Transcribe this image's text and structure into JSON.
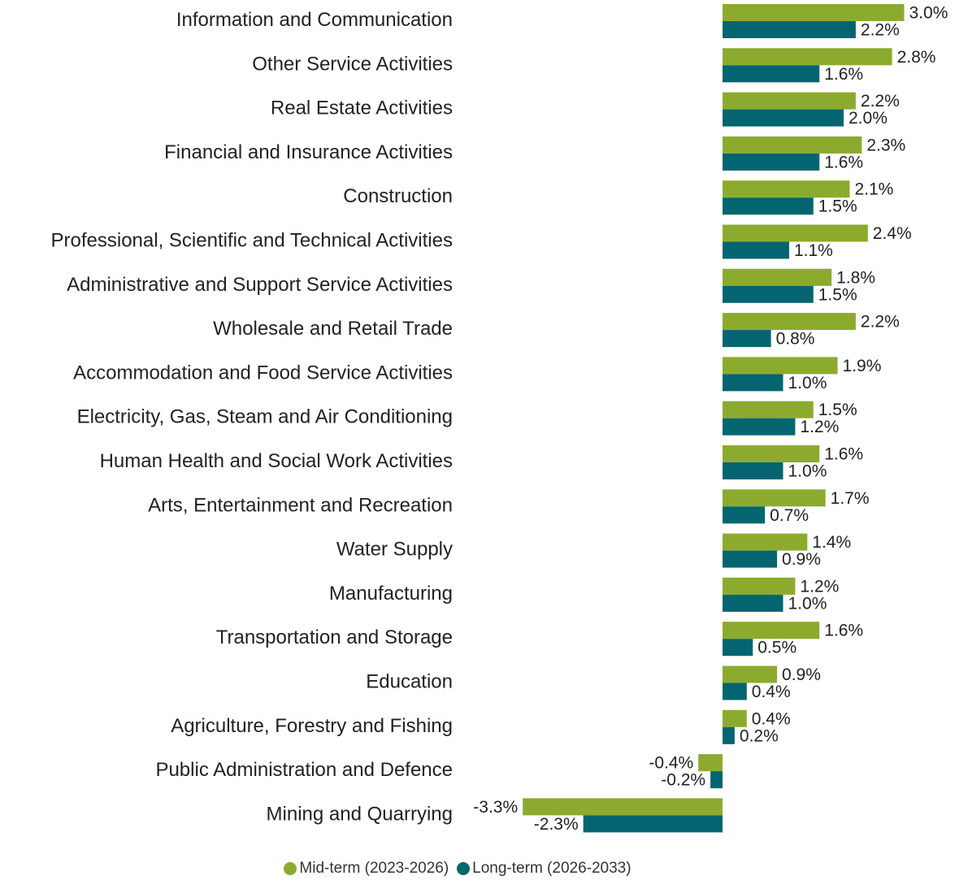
{
  "chart_data": {
    "type": "bar",
    "orientation": "horizontal",
    "categories": [
      "Information and Communication",
      "Other Service Activities",
      "Real Estate Activities",
      "Financial and Insurance Activities",
      "Construction",
      "Professional, Scientific and Technical Activities",
      "Administrative and Support Service Activities",
      "Wholesale and Retail Trade",
      "Accommodation and Food Service Activities",
      "Electricity, Gas, Steam and Air Conditioning",
      "Human Health and Social Work Activities",
      "Arts, Entertainment and Recreation",
      "Water Supply",
      "Manufacturing",
      "Transportation and Storage",
      "Education",
      "Agriculture, Forestry and Fishing",
      "Public Administration and Defence",
      "Mining and Quarrying"
    ],
    "series": [
      {
        "name": "Mid-term (2023-2026)",
        "color": "#8cab2e",
        "values": [
          3.0,
          2.8,
          2.2,
          2.3,
          2.1,
          2.4,
          1.8,
          2.2,
          1.9,
          1.5,
          1.6,
          1.7,
          1.4,
          1.2,
          1.6,
          0.9,
          0.4,
          -0.4,
          -3.3
        ],
        "labels": [
          "3.0%",
          "2.8%",
          "2.2%",
          "2.3%",
          "2.1%",
          "2.4%",
          "1.8%",
          "2.2%",
          "1.9%",
          "1.5%",
          "1.6%",
          "1.7%",
          "1.4%",
          "1.2%",
          "1.6%",
          "0.9%",
          "0.4%",
          "-0.4%",
          "-3.3%"
        ]
      },
      {
        "name": "Long-term (2026-2033)",
        "color": "#046571",
        "values": [
          2.2,
          1.6,
          2.0,
          1.6,
          1.5,
          1.1,
          1.5,
          0.8,
          1.0,
          1.2,
          1.0,
          0.7,
          0.9,
          1.0,
          0.5,
          0.4,
          0.2,
          -0.2,
          -2.3
        ],
        "labels": [
          "2.2%",
          "1.6%",
          "2.0%",
          "1.6%",
          "1.5%",
          "1.1%",
          "1.5%",
          "0.8%",
          "1.0%",
          "1.2%",
          "1.0%",
          "0.7%",
          "0.9%",
          "1.0%",
          "0.5%",
          "0.4%",
          "0.2%",
          "-0.2%",
          "-2.3%"
        ]
      }
    ],
    "xlim": [
      -3.3,
      3.0
    ],
    "grid": false,
    "legend_position": "bottom"
  },
  "legend": {
    "items": [
      {
        "label": "Mid-term (2023-2026)",
        "color": "#8cab2e"
      },
      {
        "label": "Long-term (2026-2033)",
        "color": "#046571"
      }
    ]
  }
}
